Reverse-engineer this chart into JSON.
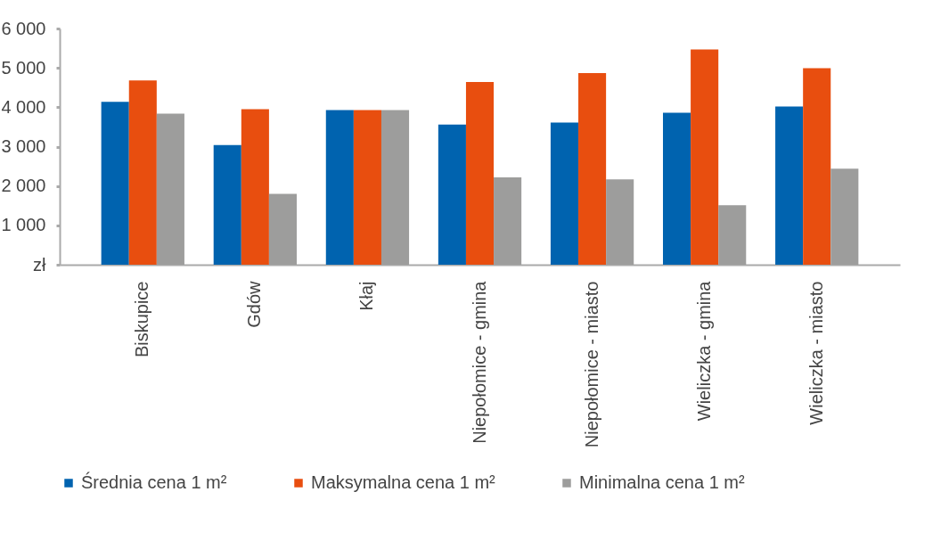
{
  "chart_data": {
    "type": "bar",
    "categories": [
      "Biskupice",
      "Gdów",
      "Kłaj",
      "Niepołomice - gmina",
      "Niepołomice - miasto",
      "Wieliczka - gmina",
      "Wieliczka - miasto"
    ],
    "series": [
      {
        "name": "Średnia cena 1 m²",
        "color": "#0063af",
        "values": [
          4140,
          3040,
          3930,
          3560,
          3610,
          3860,
          4020
        ]
      },
      {
        "name": "Maksymalna cena 1 m²",
        "color": "#e84e0f",
        "values": [
          4680,
          3950,
          3930,
          4640,
          4870,
          5470,
          4990
        ]
      },
      {
        "name": "Minimalna cena 1 m²",
        "color": "#9d9d9c",
        "values": [
          3840,
          1800,
          3930,
          2220,
          2170,
          1510,
          2440
        ]
      }
    ],
    "ylim": [
      0,
      6000
    ],
    "yticks": [
      {
        "value": 0,
        "label": "zł"
      },
      {
        "value": 1000,
        "label": "1 000"
      },
      {
        "value": 2000,
        "label": "2 000"
      },
      {
        "value": 3000,
        "label": "3 000"
      },
      {
        "value": 4000,
        "label": "4 000"
      },
      {
        "value": 5000,
        "label": "5 000"
      },
      {
        "value": 6000,
        "label": "6 000"
      }
    ],
    "grid": false,
    "legend": "bottom"
  }
}
